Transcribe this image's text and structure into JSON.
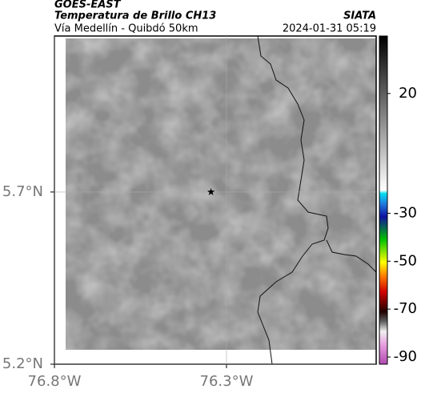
{
  "header": {
    "title": "GOES-EAST",
    "subtitle": "Temperatura de Brillo CH13",
    "route": "Vía Medellín - Quibdó 50km",
    "source": "SIATA",
    "datetime": "2024-01-31 05:19"
  },
  "map": {
    "xlim": [
      -76.8,
      -75.865
    ],
    "ylim": [
      5.2,
      6.153
    ],
    "xticks": [
      {
        "value": -76.8,
        "label": "76.8°W"
      },
      {
        "value": -76.3,
        "label": "76.3°W"
      }
    ],
    "yticks": [
      {
        "value": 5.7,
        "label": "5.7°N"
      },
      {
        "value": 5.2,
        "label": "5.2°N"
      }
    ],
    "marker": {
      "lon": -76.345,
      "lat": 5.7
    }
  },
  "colorbar": {
    "clim": [
      -93,
      44
    ],
    "ticks": [
      20,
      -30,
      -50,
      -70,
      -90
    ]
  }
}
